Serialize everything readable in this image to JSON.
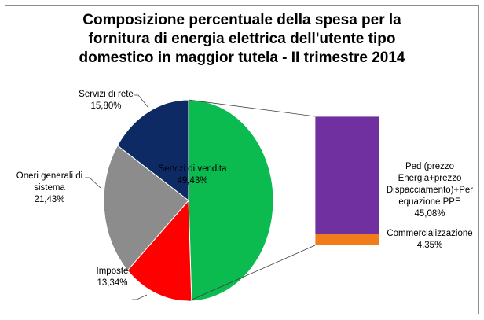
{
  "chart_data": {
    "type": "pie",
    "subtype": "pie-of-bar",
    "title_lines": [
      "Composizione percentuale della spesa per la",
      "fornitura di energia elettrica dell'utente tipo",
      "domestico in maggior tutela - II trimestre 2014"
    ],
    "pie": [
      {
        "label": "Servizi di vendita",
        "value": 49.43,
        "value_label": "49,43%",
        "color": "#0bbb50"
      },
      {
        "label": "Imposte",
        "value": 13.34,
        "value_label": "13,34%",
        "color": "#ff0000"
      },
      {
        "label": "Oneri generali di sistema",
        "label_lines": [
          "Oneri generali di",
          "sistema"
        ],
        "value": 21.43,
        "value_label": "21,43%",
        "color": "#8c8c8c"
      },
      {
        "label": "Servizi di rete",
        "value": 15.8,
        "value_label": "15,80%",
        "color": "#0e2a64"
      }
    ],
    "bar": [
      {
        "label": "Ped (prezzo Energia+prezzo Dispacciamento)+Per equazione PPE",
        "label_lines": [
          "Ped (prezzo",
          "Energia+prezzo",
          "Dispacciamento)+Per",
          "equazione PPE"
        ],
        "value": 45.08,
        "value_label": "45,08%",
        "color": "#7030a0"
      },
      {
        "label": "Commercializzazione",
        "value": 4.35,
        "value_label": "4,35%",
        "color": "#f07d1a"
      }
    ]
  }
}
